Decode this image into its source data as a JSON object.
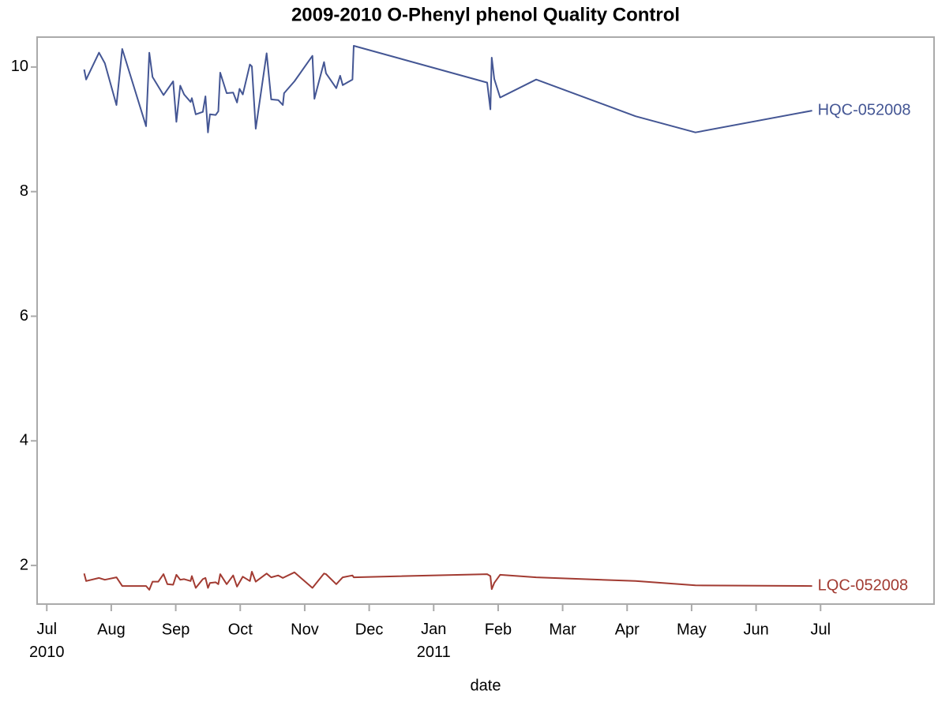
{
  "chart_data": {
    "type": "line",
    "title": "2009-2010 O-Phenyl phenol Quality Control",
    "x_label": "date",
    "xlim": [
      -0.15,
      13.76
    ],
    "xticks": [
      {
        "value": 0,
        "label": "Jul\n2010"
      },
      {
        "value": 1,
        "label": "Aug"
      },
      {
        "value": 2,
        "label": "Sep"
      },
      {
        "value": 3,
        "label": "Oct"
      },
      {
        "value": 4,
        "label": "Nov"
      },
      {
        "value": 5,
        "label": "Dec"
      },
      {
        "value": 6,
        "label": "Jan\n2011"
      },
      {
        "value": 7,
        "label": "Feb"
      },
      {
        "value": 8,
        "label": "Mar"
      },
      {
        "value": 9,
        "label": "Apr"
      },
      {
        "value": 10,
        "label": "May"
      },
      {
        "value": 11,
        "label": "Jun"
      },
      {
        "value": 12,
        "label": "Jul"
      }
    ],
    "ylim": [
      1.38,
      10.48
    ],
    "yticks": [
      2,
      4,
      6,
      8,
      10
    ],
    "series": [
      {
        "name": "HQC-052008",
        "color": "#445694",
        "x": [
          0.58,
          0.61,
          0.81,
          0.9,
          1.08,
          1.17,
          1.54,
          1.59,
          1.64,
          1.81,
          1.96,
          2.01,
          2.07,
          2.13,
          2.23,
          2.25,
          2.31,
          2.42,
          2.46,
          2.5,
          2.53,
          2.62,
          2.66,
          2.69,
          2.79,
          2.89,
          2.95,
          2.99,
          3.04,
          3.15,
          3.18,
          3.24,
          3.41,
          3.48,
          3.59,
          3.66,
          3.68,
          3.84,
          4.12,
          4.15,
          4.3,
          4.33,
          4.49,
          4.55,
          4.59,
          4.74,
          4.76,
          6.83,
          6.88,
          6.9,
          6.94,
          7.03,
          7.59,
          9.13,
          10.06,
          11.87
        ],
        "values": [
          9.96,
          9.8,
          10.23,
          10.06,
          9.39,
          10.29,
          9.05,
          10.23,
          9.84,
          9.55,
          9.77,
          9.12,
          9.7,
          9.56,
          9.44,
          9.5,
          9.24,
          9.28,
          9.53,
          8.95,
          9.24,
          9.23,
          9.29,
          9.91,
          9.58,
          9.59,
          9.43,
          9.65,
          9.56,
          10.04,
          10.01,
          9.01,
          10.22,
          9.48,
          9.47,
          9.39,
          9.58,
          9.77,
          10.18,
          9.49,
          10.08,
          9.9,
          9.66,
          9.86,
          9.71,
          9.8,
          10.34,
          9.75,
          9.32,
          10.15,
          9.81,
          9.51,
          9.8,
          9.21,
          8.95,
          9.3
        ]
      },
      {
        "name": "LQC-052008",
        "color": "#a23b32",
        "x": [
          0.58,
          0.61,
          0.81,
          0.9,
          1.08,
          1.17,
          1.54,
          1.59,
          1.64,
          1.73,
          1.81,
          1.87,
          1.96,
          2.01,
          2.07,
          2.13,
          2.23,
          2.25,
          2.31,
          2.42,
          2.46,
          2.5,
          2.53,
          2.62,
          2.66,
          2.69,
          2.79,
          2.89,
          2.95,
          3.04,
          3.15,
          3.18,
          3.24,
          3.41,
          3.48,
          3.59,
          3.66,
          3.84,
          4.12,
          4.3,
          4.33,
          4.49,
          4.59,
          4.74,
          4.76,
          6.83,
          6.88,
          6.9,
          6.94,
          7.03,
          7.59,
          9.13,
          10.06,
          11.87
        ],
        "values": [
          1.87,
          1.75,
          1.8,
          1.77,
          1.81,
          1.67,
          1.67,
          1.61,
          1.74,
          1.74,
          1.86,
          1.7,
          1.69,
          1.85,
          1.77,
          1.78,
          1.75,
          1.83,
          1.64,
          1.78,
          1.8,
          1.64,
          1.72,
          1.73,
          1.7,
          1.86,
          1.7,
          1.84,
          1.66,
          1.82,
          1.75,
          1.9,
          1.74,
          1.87,
          1.81,
          1.84,
          1.8,
          1.89,
          1.64,
          1.87,
          1.86,
          1.7,
          1.81,
          1.84,
          1.81,
          1.86,
          1.83,
          1.62,
          1.72,
          1.85,
          1.81,
          1.75,
          1.68,
          1.67
        ]
      }
    ]
  }
}
